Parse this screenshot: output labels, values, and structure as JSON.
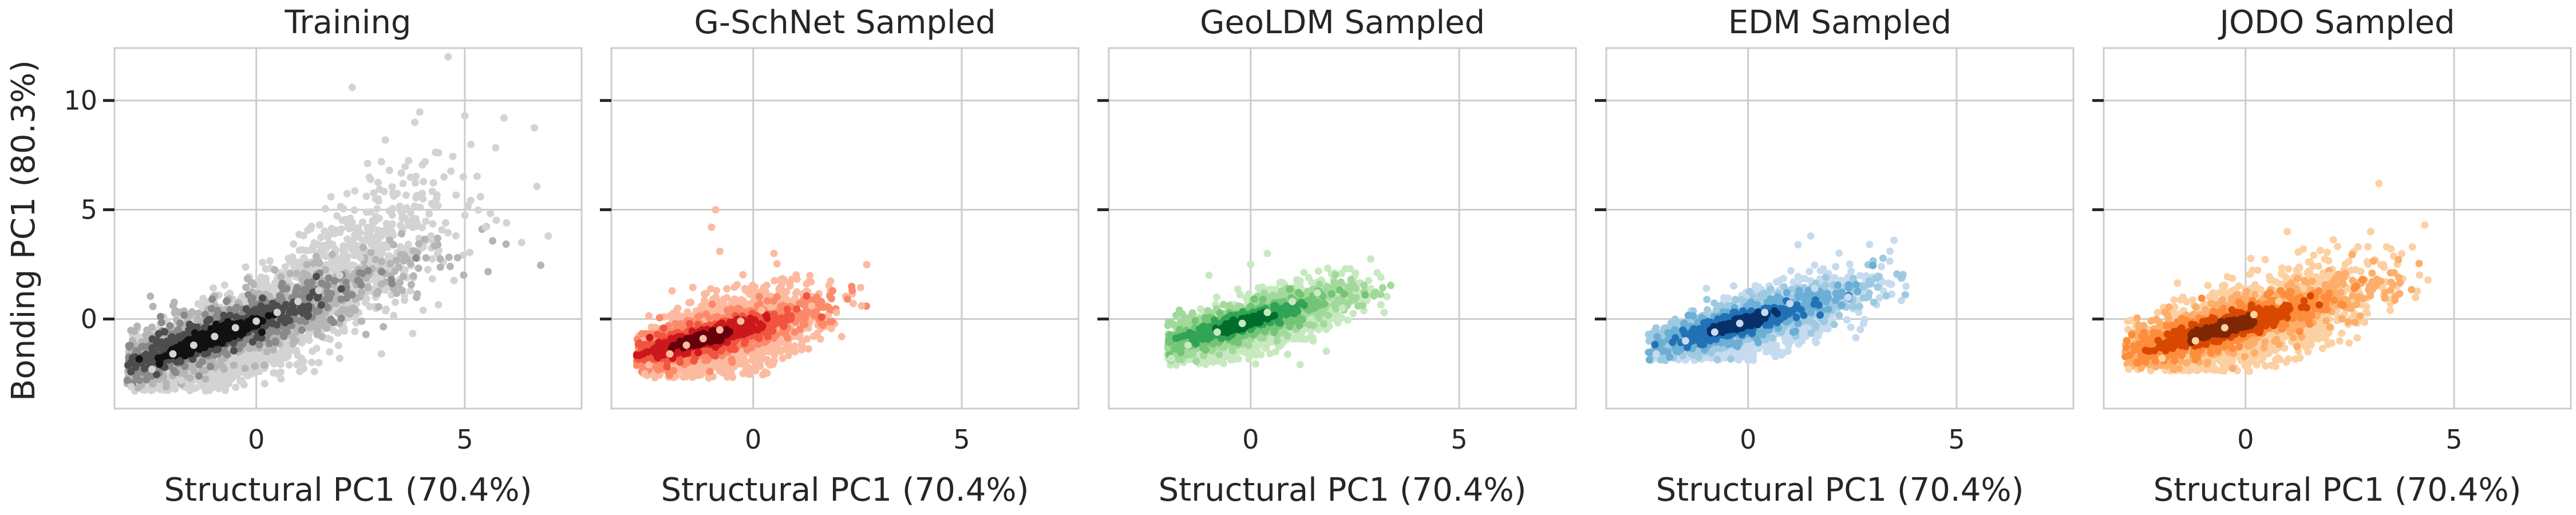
{
  "figure": {
    "y_label": "Bonding PC1 (80.3%)"
  },
  "chart_data": [
    {
      "type": "scatter",
      "title": "Training",
      "xlabel": "Structural PC1 (70.4%)",
      "ylabel": "Bonding PC1 (80.3%)",
      "xlim": [
        -3.4,
        7.8
      ],
      "ylim": [
        -4.1,
        12.4
      ],
      "xticks": [
        0,
        5
      ],
      "yticks": [
        0,
        5,
        10
      ],
      "grid": true,
      "color_map": [
        "#d3d3d3",
        "#b5b5b5",
        "#8a8a8a",
        "#4d4d4d",
        "#111111"
      ],
      "series": [
        {
          "x_range": [
            -3.0,
            7.0
          ],
          "y_range": [
            -3.2,
            12.0
          ],
          "density_center": [
            -1.0,
            -0.8
          ],
          "values": [
            [
              -1.0,
              -0.8
            ],
            [
              -1.5,
              -1.2
            ],
            [
              -0.5,
              -0.4
            ],
            [
              0.0,
              -0.1
            ],
            [
              0.5,
              0.3
            ],
            [
              -2.0,
              -1.6
            ],
            [
              -2.5,
              -2.3
            ],
            [
              -3.0,
              -3.1
            ],
            [
              1.0,
              0.8
            ],
            [
              1.5,
              1.3
            ],
            [
              2.0,
              2.0
            ],
            [
              2.5,
              2.8
            ],
            [
              3.0,
              3.8
            ],
            [
              3.5,
              4.6
            ],
            [
              4.0,
              5.5
            ],
            [
              4.5,
              6.5
            ],
            [
              3.0,
              7.2
            ],
            [
              2.3,
              10.6
            ],
            [
              4.6,
              12.0
            ],
            [
              5.5,
              4.2
            ],
            [
              6.0,
              4.4
            ],
            [
              7.0,
              3.8
            ],
            [
              5.0,
              9.3
            ],
            [
              3.8,
              9.0
            ],
            [
              2.0,
              -1.8
            ],
            [
              3.0,
              -1.6
            ],
            [
              4.0,
              0.4
            ],
            [
              -1.8,
              -2.8
            ],
            [
              0.5,
              -2.5
            ],
            [
              1.5,
              -2.0
            ]
          ]
        }
      ]
    },
    {
      "type": "scatter",
      "title": "G-SchNet Sampled",
      "xlabel": "Structural PC1 (70.4%)",
      "xlim": [
        -3.4,
        7.8
      ],
      "ylim": [
        -4.1,
        12.4
      ],
      "xticks": [
        0,
        5
      ],
      "yticks": [
        0,
        5,
        10
      ],
      "grid": true,
      "color_map": [
        "#fcbba1",
        "#fb8a6a",
        "#f1543f",
        "#cb181d",
        "#67000d"
      ],
      "series": [
        {
          "x_range": [
            -2.7,
            2.7
          ],
          "y_range": [
            -2.6,
            5.0
          ],
          "density_center": [
            -1.2,
            -0.9
          ],
          "values": [
            [
              -1.2,
              -0.9
            ],
            [
              -1.6,
              -1.2
            ],
            [
              -0.8,
              -0.5
            ],
            [
              -0.3,
              -0.1
            ],
            [
              0.2,
              0.4
            ],
            [
              -2.0,
              -1.6
            ],
            [
              -2.5,
              -2.1
            ],
            [
              0.8,
              0.9
            ],
            [
              1.4,
              0.6
            ],
            [
              2.0,
              0.3
            ],
            [
              2.6,
              0.6
            ],
            [
              -0.8,
              3.1
            ],
            [
              -1.0,
              4.2
            ],
            [
              -0.9,
              5.0
            ],
            [
              0.5,
              3.0
            ],
            [
              1.0,
              -1.5
            ],
            [
              -2.6,
              -2.5
            ],
            [
              0.4,
              -2.1
            ]
          ]
        }
      ]
    },
    {
      "type": "scatter",
      "title": "GeoLDM Sampled",
      "xlabel": "Structural PC1 (70.4%)",
      "xlim": [
        -3.4,
        7.8
      ],
      "ylim": [
        -4.1,
        12.4
      ],
      "xticks": [
        0,
        5
      ],
      "yticks": [
        0,
        5,
        10
      ],
      "grid": true,
      "color_map": [
        "#c7e9c0",
        "#a1d99b",
        "#74c476",
        "#31a354",
        "#006d2c"
      ],
      "series": [
        {
          "x_range": [
            -1.9,
            3.3
          ],
          "y_range": [
            -2.1,
            3.0
          ],
          "density_center": [
            -0.2,
            -0.2
          ],
          "values": [
            [
              -0.2,
              -0.2
            ],
            [
              -0.8,
              -0.6
            ],
            [
              0.4,
              0.3
            ],
            [
              1.0,
              0.8
            ],
            [
              -1.5,
              -1.2
            ],
            [
              -1.9,
              -1.8
            ],
            [
              1.6,
              1.2
            ],
            [
              2.2,
              0.5
            ],
            [
              3.2,
              0.3
            ],
            [
              0.0,
              2.5
            ],
            [
              0.4,
              3.0
            ],
            [
              -1.0,
              2.0
            ],
            [
              0.6,
              -1.5
            ],
            [
              1.5,
              -1.0
            ]
          ]
        }
      ]
    },
    {
      "type": "scatter",
      "title": "EDM Sampled",
      "xlabel": "Structural PC1 (70.4%)",
      "xlim": [
        -3.4,
        7.8
      ],
      "ylim": [
        -4.1,
        12.4
      ],
      "xticks": [
        0,
        5
      ],
      "yticks": [
        0,
        5,
        10
      ],
      "grid": true,
      "color_map": [
        "#c6dbef",
        "#9ecae1",
        "#6baed6",
        "#2171b5",
        "#08306b"
      ],
      "series": [
        {
          "x_range": [
            -2.3,
            3.7
          ],
          "y_range": [
            -1.8,
            3.8
          ],
          "density_center": [
            -0.2,
            -0.2
          ],
          "values": [
            [
              -0.2,
              -0.2
            ],
            [
              -0.8,
              -0.6
            ],
            [
              0.4,
              0.3
            ],
            [
              1.0,
              0.7
            ],
            [
              -1.5,
              -1.0
            ],
            [
              -2.2,
              -1.6
            ],
            [
              1.6,
              1.4
            ],
            [
              1.8,
              2.3
            ],
            [
              1.2,
              3.4
            ],
            [
              1.5,
              3.8
            ],
            [
              3.5,
              3.6
            ],
            [
              2.4,
              1.0
            ],
            [
              0.5,
              -1.3
            ],
            [
              -1.0,
              1.4
            ]
          ]
        }
      ]
    },
    {
      "type": "scatter",
      "title": "JODO Sampled",
      "xlabel": "Structural PC1 (70.4%)",
      "xlim": [
        -3.4,
        7.8
      ],
      "ylim": [
        -4.1,
        12.4
      ],
      "xticks": [
        0,
        5
      ],
      "yticks": [
        0,
        5,
        10
      ],
      "grid": true,
      "color_map": [
        "#fdd0a2",
        "#fdae6b",
        "#fd8d3c",
        "#d94801",
        "#7f2704"
      ],
      "series": [
        {
          "x_range": [
            -2.8,
            4.3
          ],
          "y_range": [
            -2.3,
            6.2
          ],
          "density_center": [
            -0.5,
            -0.4
          ],
          "values": [
            [
              -0.5,
              -0.4
            ],
            [
              -1.2,
              -1.0
            ],
            [
              0.2,
              0.2
            ],
            [
              0.8,
              0.8
            ],
            [
              -2.0,
              -1.8
            ],
            [
              -2.8,
              -2.3
            ],
            [
              1.4,
              1.4
            ],
            [
              2.0,
              2.0
            ],
            [
              2.7,
              3.3
            ],
            [
              3.0,
              4.0
            ],
            [
              4.3,
              4.3
            ],
            [
              3.2,
              6.2
            ],
            [
              1.0,
              4.0
            ],
            [
              1.5,
              -1.5
            ],
            [
              -1.5,
              1.0
            ]
          ]
        }
      ]
    }
  ]
}
